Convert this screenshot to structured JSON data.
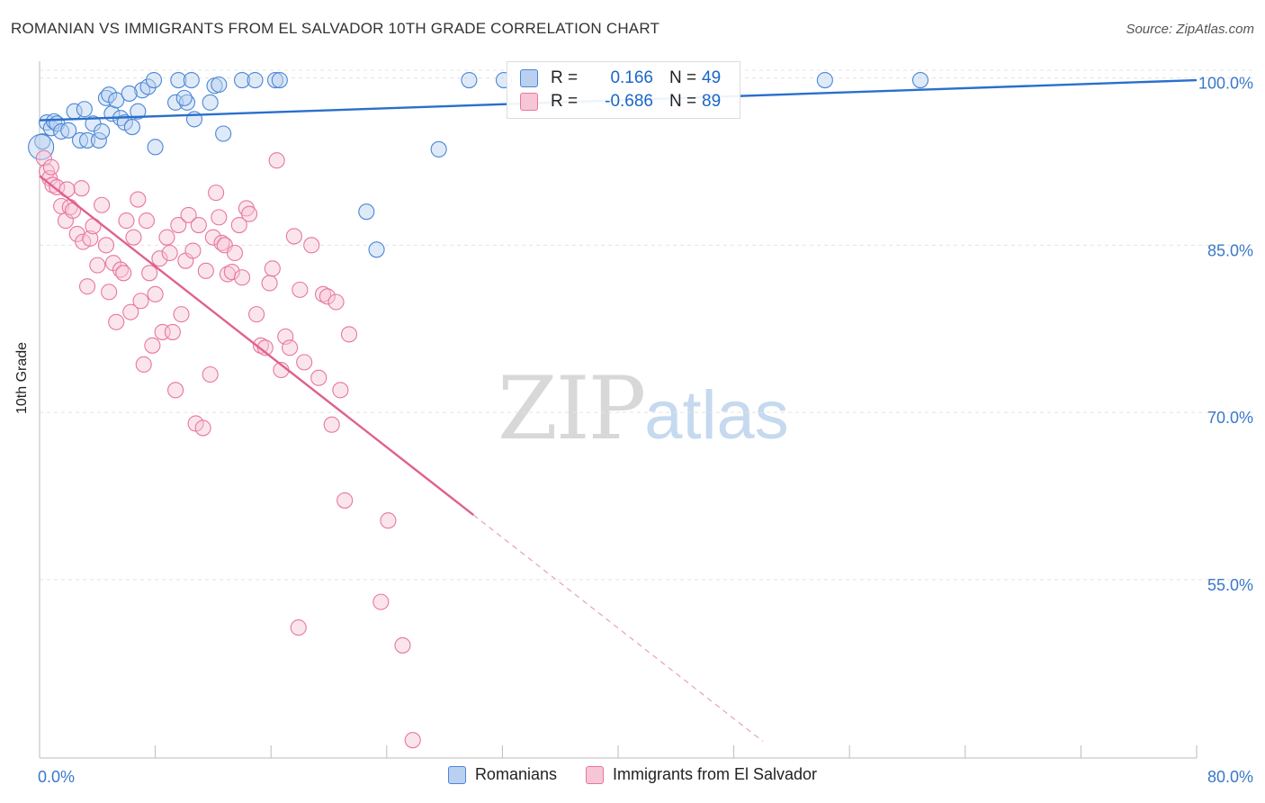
{
  "chart_data": {
    "type": "scatter",
    "title": "ROMANIAN VS IMMIGRANTS FROM EL SALVADOR 10TH GRADE CORRELATION CHART",
    "source": "Source: ZipAtlas.com",
    "ylabel": "10th Grade",
    "xlim": [
      0,
      80
    ],
    "ylim": [
      39,
      101.5
    ],
    "x_tick_labels": [
      "0.0%",
      "80.0%"
    ],
    "y_ticks": [
      {
        "value": 100,
        "label": "100.0%"
      },
      {
        "value": 85,
        "label": "85.0%"
      },
      {
        "value": 70,
        "label": "70.0%"
      },
      {
        "value": 55,
        "label": "55.0%"
      }
    ],
    "watermark": {
      "zip": "ZIP",
      "atlas": "atlas"
    },
    "series": [
      {
        "name": "Romanians",
        "color": "#4a86d6",
        "fill": "#b9d0f0",
        "R": "0.166",
        "N": "49",
        "trend": {
          "x0": 0,
          "y0": 96.2,
          "x1": 80,
          "y1": 99.8
        },
        "points": [
          [
            0.2,
            94.3
          ],
          [
            0.5,
            96.0
          ],
          [
            0.8,
            95.5
          ],
          [
            1.0,
            96.1
          ],
          [
            1.2,
            95.9
          ],
          [
            1.5,
            95.2
          ],
          [
            2.0,
            95.3
          ],
          [
            2.4,
            97.0
          ],
          [
            2.8,
            94.4
          ],
          [
            3.1,
            97.2
          ],
          [
            3.3,
            94.4
          ],
          [
            3.7,
            95.9
          ],
          [
            4.1,
            94.4
          ],
          [
            4.3,
            95.2
          ],
          [
            4.6,
            98.2
          ],
          [
            4.8,
            98.5
          ],
          [
            5.0,
            96.8
          ],
          [
            5.3,
            98.0
          ],
          [
            5.6,
            96.4
          ],
          [
            5.9,
            96.0
          ],
          [
            6.4,
            95.6
          ],
          [
            6.8,
            97.0
          ],
          [
            7.1,
            98.9
          ],
          [
            7.5,
            99.2
          ],
          [
            7.9,
            99.8
          ],
          [
            8.0,
            93.8
          ],
          [
            9.6,
            99.8
          ],
          [
            9.4,
            97.8
          ],
          [
            10.2,
            97.8
          ],
          [
            10.5,
            99.8
          ],
          [
            11.8,
            97.8
          ],
          [
            12.1,
            99.3
          ],
          [
            12.4,
            99.4
          ],
          [
            12.7,
            95.0
          ],
          [
            14.0,
            99.8
          ],
          [
            14.9,
            99.8
          ],
          [
            16.3,
            99.8
          ],
          [
            16.6,
            99.8
          ],
          [
            10.7,
            96.3
          ],
          [
            22.6,
            88.0
          ],
          [
            23.3,
            84.6
          ],
          [
            27.6,
            93.6
          ],
          [
            29.7,
            99.8
          ],
          [
            32.1,
            99.8
          ],
          [
            54.3,
            99.8
          ],
          [
            60.9,
            99.8
          ],
          [
            10.0,
            98.2
          ],
          [
            6.2,
            98.6
          ],
          [
            0.1,
            93.8
          ]
        ]
      },
      {
        "name": "Immigrants from El Salvador",
        "color": "#e8769e",
        "fill": "#f6c6d6",
        "R": "-0.686",
        "N": "89",
        "trend": {
          "x0": 0,
          "y0": 91.2,
          "x1": 30,
          "y1": 60.8
        },
        "trend_dashed": {
          "x0": 30,
          "y0": 60.8,
          "x1": 50,
          "y1": 40.5
        },
        "points": [
          [
            0.3,
            92.8
          ],
          [
            0.5,
            91.6
          ],
          [
            0.7,
            91.0
          ],
          [
            0.9,
            90.4
          ],
          [
            1.2,
            90.2
          ],
          [
            1.5,
            88.5
          ],
          [
            1.8,
            87.2
          ],
          [
            2.1,
            88.4
          ],
          [
            2.3,
            88.1
          ],
          [
            2.6,
            86.0
          ],
          [
            2.9,
            90.1
          ],
          [
            3.0,
            85.3
          ],
          [
            3.3,
            81.3
          ],
          [
            3.5,
            85.6
          ],
          [
            3.7,
            86.7
          ],
          [
            4.0,
            83.2
          ],
          [
            4.3,
            88.6
          ],
          [
            4.6,
            85.0
          ],
          [
            4.8,
            80.8
          ],
          [
            5.1,
            83.4
          ],
          [
            5.3,
            78.1
          ],
          [
            5.6,
            82.8
          ],
          [
            5.8,
            82.5
          ],
          [
            6.0,
            87.2
          ],
          [
            6.3,
            79.0
          ],
          [
            6.5,
            85.7
          ],
          [
            6.8,
            89.1
          ],
          [
            7.0,
            80.0
          ],
          [
            7.2,
            74.3
          ],
          [
            7.4,
            87.2
          ],
          [
            7.6,
            82.5
          ],
          [
            7.8,
            76.0
          ],
          [
            8.0,
            80.6
          ],
          [
            8.3,
            83.8
          ],
          [
            8.5,
            77.2
          ],
          [
            8.8,
            85.7
          ],
          [
            9.0,
            84.3
          ],
          [
            9.2,
            77.2
          ],
          [
            9.4,
            72.0
          ],
          [
            9.6,
            86.8
          ],
          [
            9.8,
            78.8
          ],
          [
            10.1,
            83.6
          ],
          [
            10.3,
            87.7
          ],
          [
            10.6,
            84.5
          ],
          [
            10.8,
            69.0
          ],
          [
            11.0,
            86.8
          ],
          [
            11.3,
            68.6
          ],
          [
            11.5,
            82.7
          ],
          [
            11.8,
            73.4
          ],
          [
            12.0,
            85.7
          ],
          [
            12.2,
            89.7
          ],
          [
            12.4,
            87.5
          ],
          [
            12.6,
            85.2
          ],
          [
            12.8,
            85.0
          ],
          [
            13.0,
            82.4
          ],
          [
            13.3,
            82.6
          ],
          [
            13.5,
            84.3
          ],
          [
            13.8,
            86.8
          ],
          [
            14.0,
            82.1
          ],
          [
            14.3,
            88.3
          ],
          [
            14.5,
            87.8
          ],
          [
            15.0,
            78.8
          ],
          [
            15.3,
            76.0
          ],
          [
            15.6,
            75.8
          ],
          [
            15.9,
            81.6
          ],
          [
            16.1,
            82.9
          ],
          [
            16.4,
            92.6
          ],
          [
            16.7,
            73.8
          ],
          [
            17.0,
            76.8
          ],
          [
            17.3,
            75.8
          ],
          [
            17.6,
            85.8
          ],
          [
            18.0,
            81.0
          ],
          [
            18.3,
            74.5
          ],
          [
            18.8,
            85.0
          ],
          [
            19.3,
            73.1
          ],
          [
            19.6,
            80.6
          ],
          [
            19.9,
            80.4
          ],
          [
            20.2,
            68.9
          ],
          [
            20.5,
            79.9
          ],
          [
            20.8,
            72.0
          ],
          [
            21.1,
            62.1
          ],
          [
            21.4,
            77.0
          ],
          [
            23.6,
            53.0
          ],
          [
            24.1,
            60.3
          ],
          [
            25.1,
            49.1
          ],
          [
            17.9,
            50.7
          ],
          [
            25.8,
            40.6
          ],
          [
            1.9,
            90.0
          ],
          [
            0.8,
            92.0
          ]
        ]
      }
    ]
  }
}
